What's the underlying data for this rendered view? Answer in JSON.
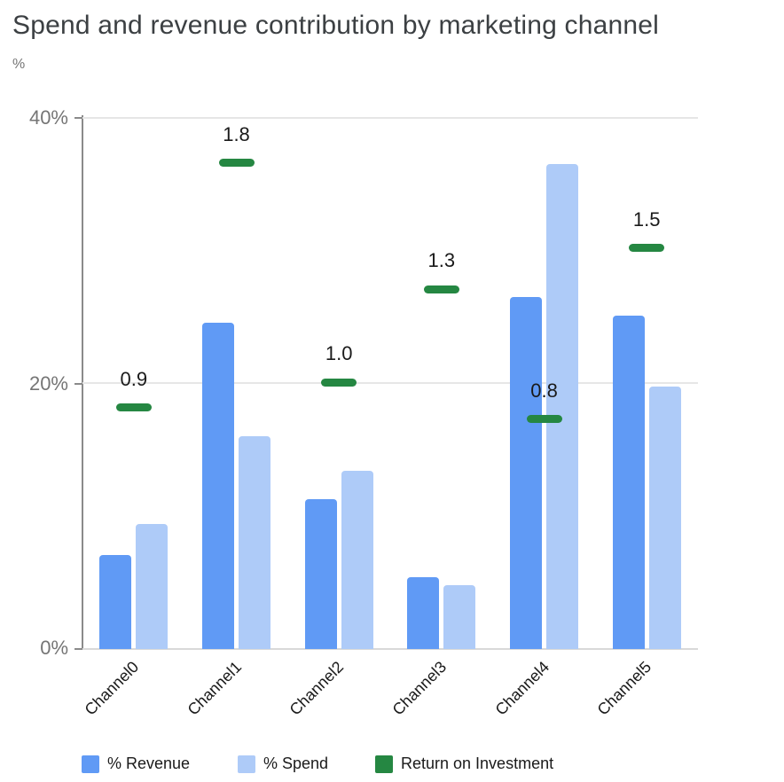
{
  "chart_data": {
    "type": "bar",
    "title": "Spend and revenue contribution by marketing channel",
    "ylabel": "%",
    "xlabel": "",
    "categories": [
      "Channel0",
      "Channel1",
      "Channel2",
      "Channel3",
      "Channel4",
      "Channel5"
    ],
    "series": [
      {
        "name": "% Revenue",
        "mark": "bar",
        "color": "#609af5",
        "values": [
          7.1,
          24.6,
          11.3,
          5.4,
          26.5,
          25.1
        ]
      },
      {
        "name": "% Spend",
        "mark": "bar",
        "color": "#aecbf8",
        "values": [
          9.4,
          16.0,
          13.4,
          4.8,
          36.5,
          19.8
        ]
      },
      {
        "name": "Return on Investment",
        "mark": "dash",
        "color": "#258742",
        "values": [
          0.9,
          1.8,
          1.0,
          1.3,
          0.8,
          1.5
        ],
        "labels": [
          "0.9",
          "1.8",
          "1.0",
          "1.3",
          "0.8",
          "1.5"
        ],
        "plotted_pct_left_axis": [
          18.2,
          36.6,
          20.1,
          27.1,
          17.3,
          30.2
        ]
      }
    ],
    "ylim": [
      0,
      40
    ],
    "yticks": [
      "40%",
      "20%",
      "0%"
    ],
    "grid": true,
    "legend_position": "bottom"
  }
}
